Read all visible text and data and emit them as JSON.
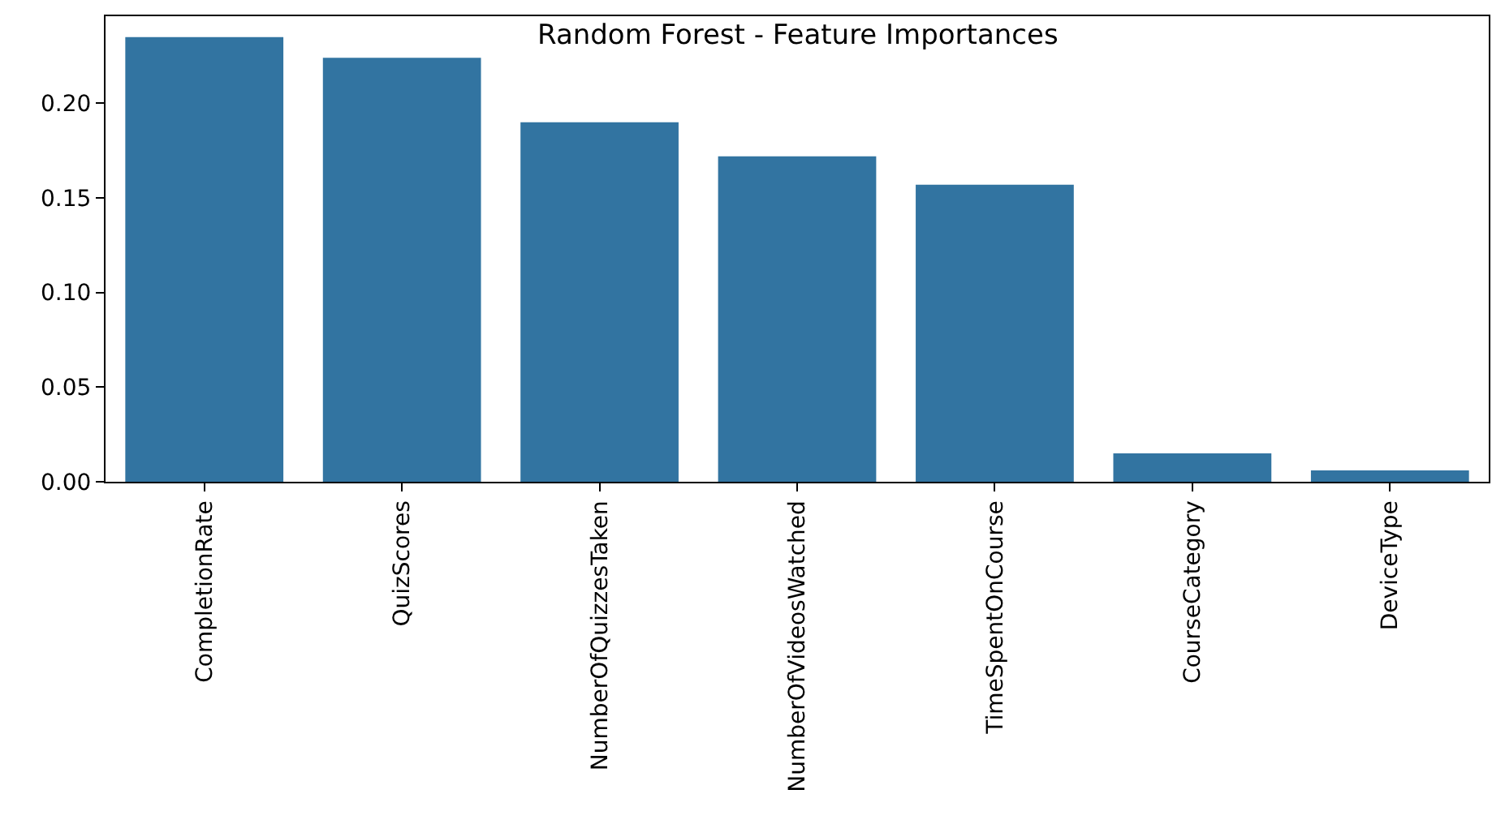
{
  "chart_data": {
    "type": "bar",
    "title": "Random Forest - Feature Importances",
    "categories": [
      "CompletionRate",
      "QuizScores",
      "NumberOfQuizzesTaken",
      "NumberOfVideosWatched",
      "TimeSpentOnCourse",
      "CourseCategory",
      "DeviceType"
    ],
    "values": [
      0.235,
      0.224,
      0.19,
      0.172,
      0.157,
      0.015,
      0.006
    ],
    "color": "#3274a1",
    "ylim": [
      0,
      0.246
    ],
    "yticks": [
      {
        "value": 0,
        "label": "0.00"
      },
      {
        "value": 0.05,
        "label": "0.05"
      },
      {
        "value": 0.1,
        "label": "0.10"
      },
      {
        "value": 0.15,
        "label": "0.15"
      },
      {
        "value": 0.2,
        "label": "0.20"
      }
    ],
    "legend": false
  }
}
